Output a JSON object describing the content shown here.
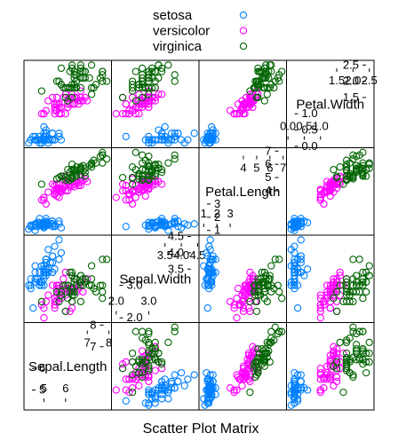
{
  "chart_data": {
    "type": "scatter",
    "xlabel": "Scatter Plot Matrix",
    "legend_position": "top",
    "variables": [
      {
        "name": "Sepal.Length",
        "range": [
          4.3,
          7.9
        ],
        "tick_labels": [
          "5",
          "6",
          "7",
          "8"
        ],
        "tick_values": [
          5,
          6,
          7,
          8
        ]
      },
      {
        "name": "Sepal.Width",
        "range": [
          2.0,
          4.4
        ],
        "tick_labels": [
          "2.0",
          "3.0",
          "3.5",
          "4.0",
          "4.5"
        ],
        "tick_values": [
          2.0,
          3.0,
          3.5,
          4.0,
          4.5
        ]
      },
      {
        "name": "Petal.Length",
        "range": [
          1.0,
          6.9
        ],
        "tick_labels": [
          "1",
          "2",
          "3",
          "4",
          "5",
          "6",
          "7"
        ],
        "tick_values": [
          1,
          2,
          3,
          4,
          5,
          6,
          7
        ]
      },
      {
        "name": "Petal.Width",
        "range": [
          0.1,
          2.5
        ],
        "tick_labels": [
          "0.0",
          "0.5",
          "1.0",
          "1.5",
          "2.0",
          "2.5"
        ],
        "tick_values": [
          0.0,
          0.5,
          1.0,
          1.5,
          2.0,
          2.5
        ]
      }
    ],
    "series": [
      {
        "name": "setosa",
        "color": "#0080ff",
        "values": [
          [
            5.1,
            3.5,
            1.4,
            0.2
          ],
          [
            4.9,
            3.0,
            1.4,
            0.2
          ],
          [
            4.7,
            3.2,
            1.3,
            0.2
          ],
          [
            4.6,
            3.1,
            1.5,
            0.2
          ],
          [
            5.0,
            3.6,
            1.4,
            0.2
          ],
          [
            5.4,
            3.9,
            1.7,
            0.4
          ],
          [
            4.6,
            3.4,
            1.4,
            0.3
          ],
          [
            5.0,
            3.4,
            1.5,
            0.2
          ],
          [
            4.4,
            2.9,
            1.4,
            0.2
          ],
          [
            4.9,
            3.1,
            1.5,
            0.1
          ],
          [
            5.4,
            3.7,
            1.5,
            0.2
          ],
          [
            4.8,
            3.4,
            1.6,
            0.2
          ],
          [
            4.8,
            3.0,
            1.4,
            0.1
          ],
          [
            4.3,
            3.0,
            1.1,
            0.1
          ],
          [
            5.8,
            4.0,
            1.2,
            0.2
          ],
          [
            5.7,
            4.4,
            1.5,
            0.4
          ],
          [
            5.4,
            3.9,
            1.3,
            0.4
          ],
          [
            5.1,
            3.5,
            1.4,
            0.3
          ],
          [
            5.7,
            3.8,
            1.7,
            0.3
          ],
          [
            5.1,
            3.8,
            1.5,
            0.3
          ],
          [
            5.4,
            3.4,
            1.7,
            0.2
          ],
          [
            5.1,
            3.7,
            1.5,
            0.4
          ],
          [
            4.6,
            3.6,
            1.0,
            0.2
          ],
          [
            5.1,
            3.3,
            1.7,
            0.5
          ],
          [
            4.8,
            3.4,
            1.9,
            0.2
          ],
          [
            5.0,
            3.0,
            1.6,
            0.2
          ],
          [
            5.0,
            3.4,
            1.6,
            0.4
          ],
          [
            5.2,
            3.5,
            1.5,
            0.2
          ],
          [
            5.2,
            3.4,
            1.4,
            0.2
          ],
          [
            4.7,
            3.2,
            1.6,
            0.2
          ],
          [
            4.8,
            3.1,
            1.6,
            0.2
          ],
          [
            5.4,
            3.4,
            1.5,
            0.4
          ],
          [
            5.2,
            4.1,
            1.5,
            0.1
          ],
          [
            5.5,
            4.2,
            1.4,
            0.2
          ],
          [
            4.9,
            3.1,
            1.5,
            0.2
          ],
          [
            5.0,
            3.2,
            1.2,
            0.2
          ],
          [
            5.5,
            3.5,
            1.3,
            0.2
          ],
          [
            4.9,
            3.6,
            1.4,
            0.1
          ],
          [
            4.4,
            3.0,
            1.3,
            0.2
          ],
          [
            5.1,
            3.4,
            1.5,
            0.2
          ],
          [
            5.0,
            3.5,
            1.3,
            0.3
          ],
          [
            4.5,
            2.3,
            1.3,
            0.3
          ],
          [
            4.4,
            3.2,
            1.3,
            0.2
          ],
          [
            5.0,
            3.5,
            1.6,
            0.6
          ],
          [
            5.1,
            3.8,
            1.9,
            0.4
          ],
          [
            4.8,
            3.0,
            1.4,
            0.3
          ],
          [
            5.1,
            3.8,
            1.6,
            0.2
          ],
          [
            4.6,
            3.2,
            1.4,
            0.2
          ],
          [
            5.3,
            3.7,
            1.5,
            0.2
          ],
          [
            5.0,
            3.3,
            1.4,
            0.2
          ]
        ]
      },
      {
        "name": "versicolor",
        "color": "#ff00ff",
        "values": [
          [
            7.0,
            3.2,
            4.7,
            1.4
          ],
          [
            6.4,
            3.2,
            4.5,
            1.5
          ],
          [
            6.9,
            3.1,
            4.9,
            1.5
          ],
          [
            5.5,
            2.3,
            4.0,
            1.3
          ],
          [
            6.5,
            2.8,
            4.6,
            1.5
          ],
          [
            5.7,
            2.8,
            4.5,
            1.3
          ],
          [
            6.3,
            3.3,
            4.7,
            1.6
          ],
          [
            4.9,
            2.4,
            3.3,
            1.0
          ],
          [
            6.6,
            2.9,
            4.6,
            1.3
          ],
          [
            5.2,
            2.7,
            3.9,
            1.4
          ],
          [
            5.0,
            2.0,
            3.5,
            1.0
          ],
          [
            5.9,
            3.0,
            4.2,
            1.5
          ],
          [
            6.0,
            2.2,
            4.0,
            1.0
          ],
          [
            6.1,
            2.9,
            4.7,
            1.4
          ],
          [
            5.6,
            2.9,
            3.6,
            1.3
          ],
          [
            6.7,
            3.1,
            4.4,
            1.4
          ],
          [
            5.6,
            3.0,
            4.5,
            1.5
          ],
          [
            5.8,
            2.7,
            4.1,
            1.0
          ],
          [
            6.2,
            2.2,
            4.5,
            1.5
          ],
          [
            5.6,
            2.5,
            3.9,
            1.1
          ],
          [
            5.9,
            3.2,
            4.8,
            1.8
          ],
          [
            6.1,
            2.8,
            4.0,
            1.3
          ],
          [
            6.3,
            2.5,
            4.9,
            1.5
          ],
          [
            6.1,
            2.8,
            4.7,
            1.2
          ],
          [
            6.4,
            2.9,
            4.3,
            1.3
          ],
          [
            6.6,
            3.0,
            4.4,
            1.4
          ],
          [
            6.8,
            2.8,
            4.8,
            1.4
          ],
          [
            6.7,
            3.0,
            5.0,
            1.7
          ],
          [
            6.0,
            2.9,
            4.5,
            1.5
          ],
          [
            5.7,
            2.6,
            3.5,
            1.0
          ],
          [
            5.5,
            2.4,
            3.8,
            1.1
          ],
          [
            5.5,
            2.4,
            3.7,
            1.0
          ],
          [
            5.8,
            2.7,
            3.9,
            1.2
          ],
          [
            6.0,
            2.7,
            5.1,
            1.6
          ],
          [
            5.4,
            3.0,
            4.5,
            1.5
          ],
          [
            6.0,
            3.4,
            4.5,
            1.6
          ],
          [
            6.7,
            3.1,
            4.7,
            1.5
          ],
          [
            6.3,
            2.3,
            4.4,
            1.3
          ],
          [
            5.6,
            3.0,
            4.1,
            1.3
          ],
          [
            5.5,
            2.5,
            4.0,
            1.3
          ],
          [
            5.5,
            2.6,
            4.4,
            1.2
          ],
          [
            6.1,
            3.0,
            4.6,
            1.4
          ],
          [
            5.8,
            2.6,
            4.0,
            1.2
          ],
          [
            5.0,
            2.3,
            3.3,
            1.0
          ],
          [
            5.6,
            2.7,
            4.2,
            1.3
          ],
          [
            5.7,
            3.0,
            4.2,
            1.2
          ],
          [
            5.7,
            2.9,
            4.2,
            1.3
          ],
          [
            6.2,
            2.9,
            4.3,
            1.3
          ],
          [
            5.1,
            2.5,
            3.0,
            1.1
          ],
          [
            5.7,
            2.8,
            4.1,
            1.3
          ]
        ]
      },
      {
        "name": "virginica",
        "color": "#006400",
        "values": [
          [
            6.3,
            3.3,
            6.0,
            2.5
          ],
          [
            5.8,
            2.7,
            5.1,
            1.9
          ],
          [
            7.1,
            3.0,
            5.9,
            2.1
          ],
          [
            6.3,
            2.9,
            5.6,
            1.8
          ],
          [
            6.5,
            3.0,
            5.8,
            2.2
          ],
          [
            7.6,
            3.0,
            6.6,
            2.1
          ],
          [
            4.9,
            2.5,
            4.5,
            1.7
          ],
          [
            7.3,
            2.9,
            6.3,
            1.8
          ],
          [
            6.7,
            2.5,
            5.8,
            1.8
          ],
          [
            7.2,
            3.6,
            6.1,
            2.5
          ],
          [
            6.5,
            3.2,
            5.1,
            2.0
          ],
          [
            6.4,
            2.7,
            5.3,
            1.9
          ],
          [
            6.8,
            3.0,
            5.5,
            2.1
          ],
          [
            5.7,
            2.5,
            5.0,
            2.0
          ],
          [
            5.8,
            2.8,
            5.1,
            2.4
          ],
          [
            6.4,
            3.2,
            5.3,
            2.3
          ],
          [
            6.5,
            3.0,
            5.5,
            1.8
          ],
          [
            7.7,
            3.8,
            6.7,
            2.2
          ],
          [
            7.7,
            2.6,
            6.9,
            2.3
          ],
          [
            6.0,
            2.2,
            5.0,
            1.5
          ],
          [
            6.9,
            3.2,
            5.7,
            2.3
          ],
          [
            5.6,
            2.8,
            4.9,
            2.0
          ],
          [
            7.7,
            2.8,
            6.7,
            2.0
          ],
          [
            6.3,
            2.7,
            4.9,
            1.8
          ],
          [
            6.7,
            3.3,
            5.7,
            2.1
          ],
          [
            7.2,
            3.2,
            6.0,
            1.8
          ],
          [
            6.2,
            2.8,
            4.8,
            1.8
          ],
          [
            6.1,
            3.0,
            4.9,
            1.8
          ],
          [
            6.4,
            2.8,
            5.6,
            2.1
          ],
          [
            7.2,
            3.0,
            5.8,
            1.6
          ],
          [
            7.4,
            2.8,
            6.1,
            1.9
          ],
          [
            7.9,
            3.8,
            6.4,
            2.0
          ],
          [
            6.4,
            2.8,
            5.6,
            2.2
          ],
          [
            6.3,
            2.8,
            5.1,
            1.5
          ],
          [
            6.1,
            2.6,
            5.6,
            1.4
          ],
          [
            7.7,
            3.0,
            6.1,
            2.3
          ],
          [
            6.3,
            3.4,
            5.6,
            2.4
          ],
          [
            6.4,
            3.1,
            5.5,
            1.8
          ],
          [
            6.0,
            3.0,
            4.8,
            1.8
          ],
          [
            6.9,
            3.1,
            5.4,
            2.1
          ],
          [
            6.7,
            3.1,
            5.6,
            2.4
          ],
          [
            6.9,
            3.1,
            5.1,
            2.3
          ],
          [
            5.8,
            2.7,
            5.1,
            1.9
          ],
          [
            6.8,
            3.2,
            5.9,
            2.3
          ],
          [
            6.7,
            3.3,
            5.7,
            2.5
          ],
          [
            6.7,
            3.0,
            5.2,
            2.3
          ],
          [
            6.3,
            2.5,
            5.0,
            1.9
          ],
          [
            6.5,
            3.0,
            5.2,
            2.0
          ],
          [
            6.2,
            3.4,
            5.4,
            2.3
          ],
          [
            5.9,
            3.0,
            5.1,
            1.8
          ]
        ]
      }
    ]
  }
}
